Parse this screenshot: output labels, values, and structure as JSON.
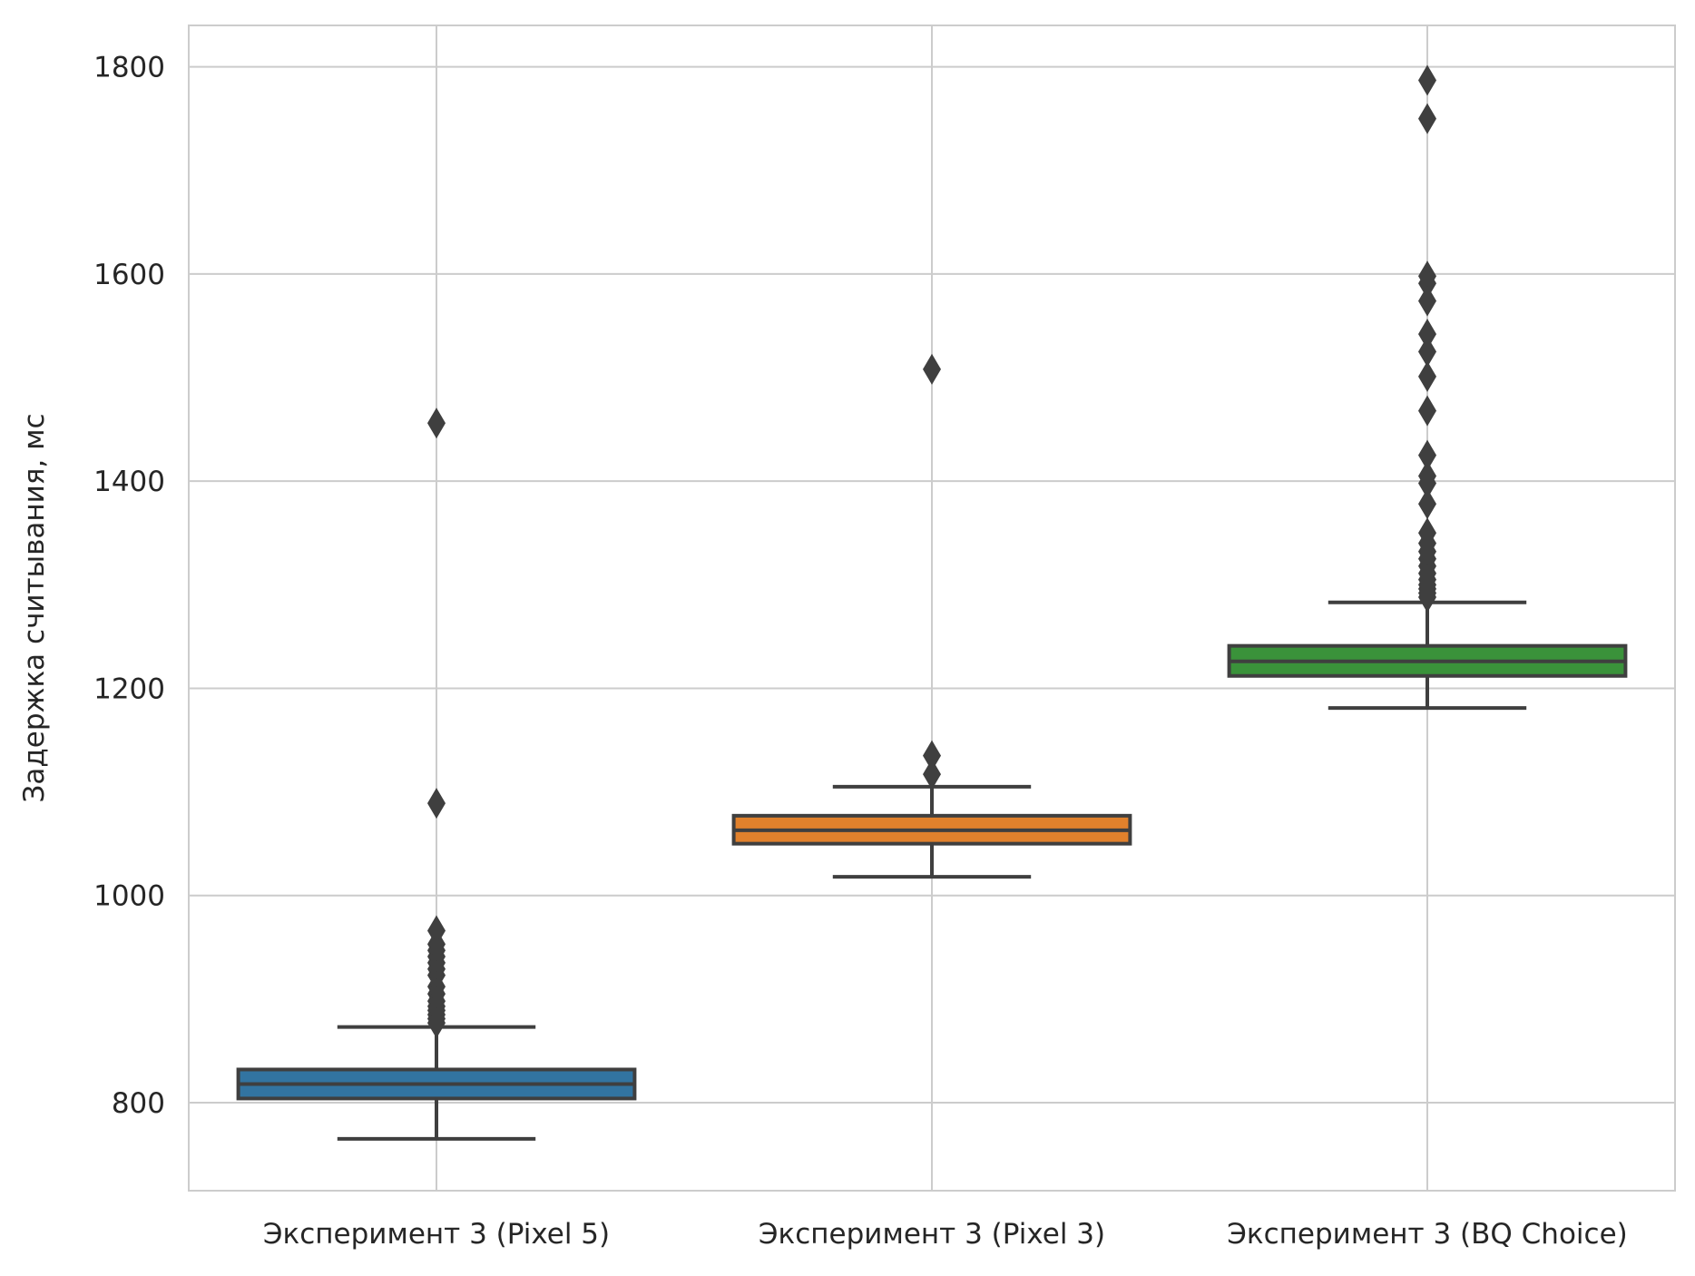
{
  "chart_data": {
    "type": "box",
    "title": "",
    "xlabel": "",
    "ylabel": "Задержка считывания, мс",
    "ylim": [
      715,
      1840
    ],
    "yticks": [
      800,
      1000,
      1200,
      1400,
      1600,
      1800
    ],
    "grid": true,
    "categories": [
      "Эксперимент 3 (Pixel 5)",
      "Эксперимент 3 (Pixel 3)",
      "Эксперимент 3 (BQ Choice)"
    ],
    "colors": [
      "#3274a1",
      "#e1812c",
      "#3a923a"
    ],
    "boxes": [
      {
        "category": "Эксперимент 3 (Pixel 5)",
        "whisker_low": 765,
        "q1": 804,
        "median": 818,
        "q3": 832,
        "whisker_high": 873,
        "outliers": [
          1456,
          1089,
          966,
          953,
          947,
          941,
          935,
          929,
          923,
          912,
          905,
          898,
          893,
          889,
          885,
          881,
          877
        ]
      },
      {
        "category": "Эксперимент 3 (Pixel 3)",
        "whisker_low": 1018,
        "q1": 1050,
        "median": 1063,
        "q3": 1077,
        "whisker_high": 1105,
        "outliers": [
          1508,
          1135,
          1117
        ]
      },
      {
        "category": "Эксперимент 3 (BQ Choice)",
        "whisker_low": 1181,
        "q1": 1212,
        "median": 1226,
        "q3": 1241,
        "whisker_high": 1283,
        "outliers": [
          1787,
          1750,
          1598,
          1591,
          1574,
          1542,
          1525,
          1501,
          1468,
          1425,
          1405,
          1398,
          1378,
          1350,
          1340,
          1332,
          1325,
          1318,
          1311,
          1305,
          1300,
          1296,
          1292,
          1288
        ]
      }
    ]
  }
}
